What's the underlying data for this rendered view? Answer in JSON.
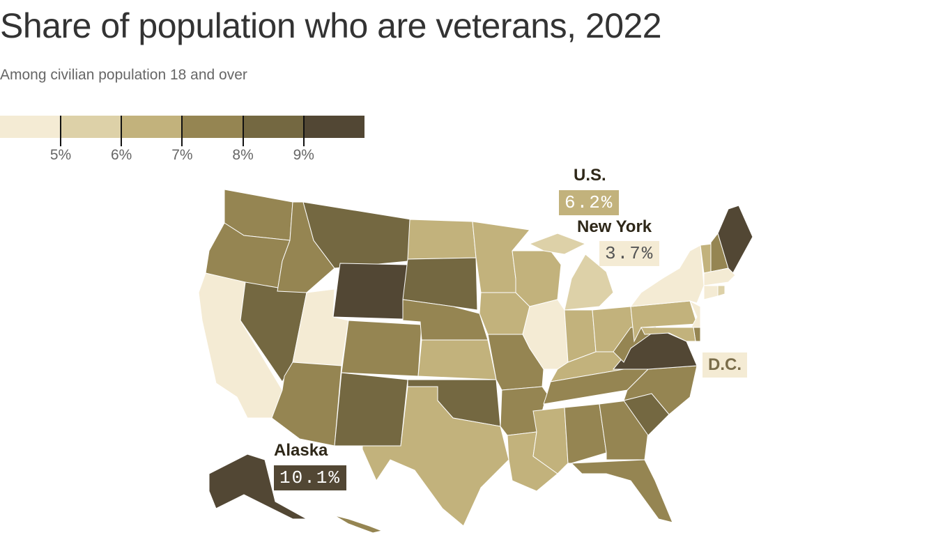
{
  "title": "Share of population who are veterans, 2022",
  "subtitle": "Among civilian population 18 and over",
  "legend": {
    "colors": [
      "#f4ebd4",
      "#ddd1a8",
      "#c2b27c",
      "#958552",
      "#746841",
      "#524734"
    ],
    "ticks": [
      "5%",
      "6%",
      "7%",
      "8%",
      "9%"
    ]
  },
  "callouts": {
    "us": {
      "label": "U.S.",
      "value": "6.2%"
    },
    "ny": {
      "label": "New York",
      "value": "3.7%"
    },
    "dc": {
      "label": "D.C."
    },
    "ak": {
      "label": "Alaska",
      "value": "10.1%"
    }
  },
  "chart_data": {
    "type": "choropleth",
    "bins": [
      "<5%",
      "5–6%",
      "6–7%",
      "7–8%",
      "8–9%",
      ">9%"
    ],
    "state_bin": {
      "WA": 3,
      "OR": 3,
      "CA": 0,
      "NV": 4,
      "ID": 3,
      "MT": 4,
      "WY": 5,
      "UT": 0,
      "AZ": 3,
      "CO": 3,
      "NM": 4,
      "ND": 2,
      "SD": 4,
      "NE": 3,
      "KS": 2,
      "OK": 4,
      "TX": 2,
      "MN": 2,
      "IA": 2,
      "MO": 3,
      "AR": 3,
      "LA": 2,
      "WI": 2,
      "IL": 0,
      "MI": 1,
      "IN": 2,
      "OH": 2,
      "KY": 2,
      "TN": 3,
      "MS": 2,
      "AL": 3,
      "GA": 3,
      "FL": 3,
      "SC": 4,
      "NC": 3,
      "VA": 5,
      "WV": 3,
      "PA": 2,
      "NY": 0,
      "VT": 2,
      "NH": 3,
      "ME": 5,
      "MA": 0,
      "CT": 0,
      "RI": 1,
      "NJ": 0,
      "DE": 3,
      "MD": 2,
      "DC": 0,
      "AK": 5,
      "HI": 3
    }
  }
}
